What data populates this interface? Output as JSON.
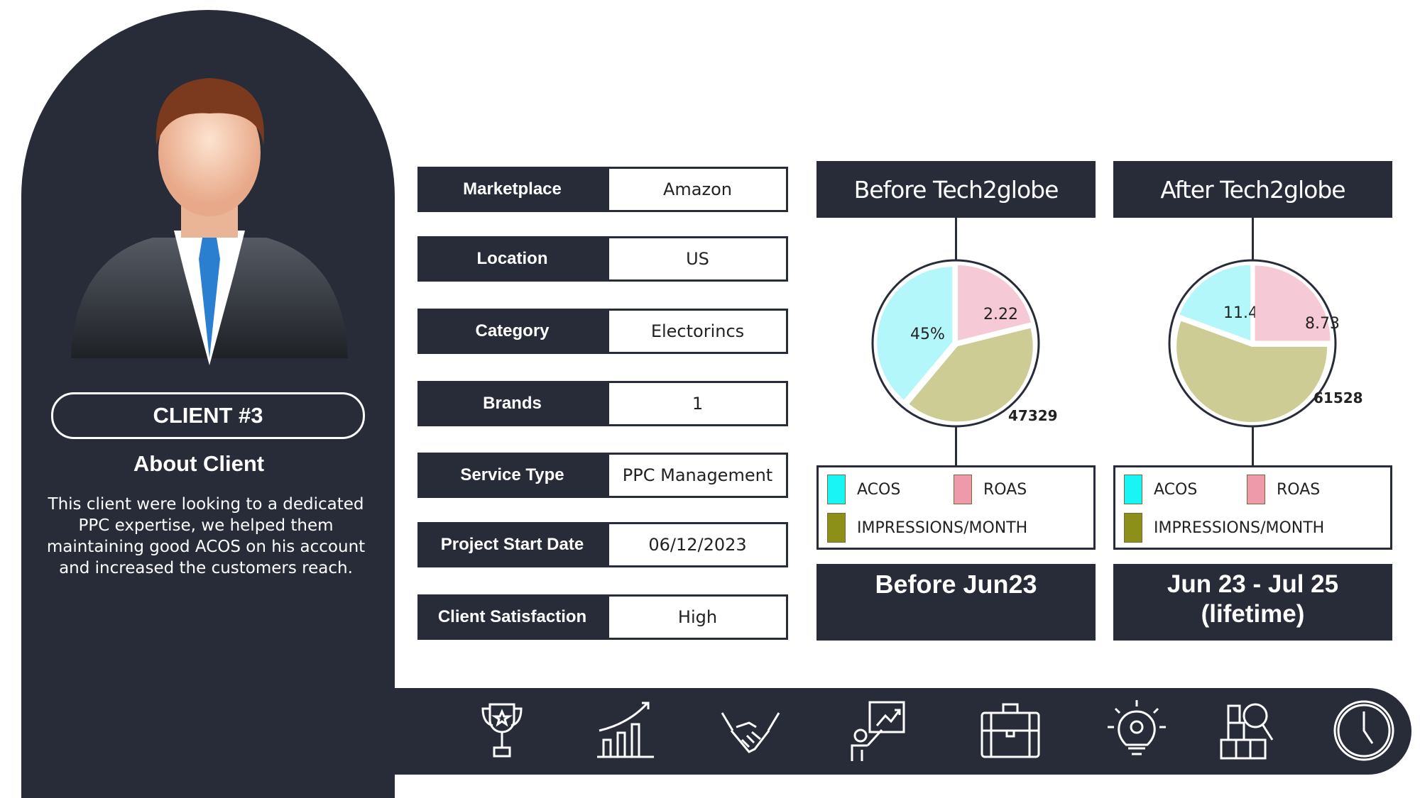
{
  "client": {
    "badge": "CLIENT #3",
    "about_title": "About Client",
    "about_text": "This client were looking to a dedicated PPC expertise, we helped them maintaining good ACOS on his account and increased the customers reach."
  },
  "details": [
    {
      "label": "Marketplace",
      "value": "Amazon"
    },
    {
      "label": "Location",
      "value": "US"
    },
    {
      "label": "Category",
      "value": "Electorincs"
    },
    {
      "label": "Brands",
      "value": "1"
    },
    {
      "label": "Service Type",
      "value": "PPC Management"
    },
    {
      "label": "Project Start Date",
      "value": "06/12/2023"
    },
    {
      "label": "Client Satisfaction",
      "value": "High"
    }
  ],
  "chart_data": [
    {
      "type": "pie",
      "title": "Before Tech2globe",
      "period": "Before Jun23",
      "categories": [
        "ACOS",
        "ROAS",
        "IMPRESSIONS/MONTH"
      ],
      "labels": [
        "45%",
        "2.22",
        "47329"
      ],
      "values": [
        45,
        2.22,
        47329
      ],
      "colors": [
        "#b3f7fa",
        "#f5c9d5",
        "#cccc94"
      ]
    },
    {
      "type": "pie",
      "title": "After Tech2globe",
      "period": "Jun 23 - Jul 25 (lifetime)",
      "categories": [
        "ACOS",
        "ROAS",
        "IMPRESSIONS/MONTH"
      ],
      "labels": [
        "11.45%",
        "8.73",
        "61528"
      ],
      "values": [
        11.45,
        8.73,
        61528
      ],
      "colors": [
        "#b3f7fa",
        "#f5c9d5",
        "#cccc94"
      ]
    }
  ],
  "legend_colors": [
    "#19f5f5",
    "#ef9aaa",
    "#8c9018"
  ],
  "icons": [
    "trophy-icon",
    "growth-chart-icon",
    "handshake-icon",
    "presentation-icon",
    "briefcase-icon",
    "lightbulb-gear-icon",
    "inventory-search-icon",
    "clock-icon"
  ],
  "colors": {
    "dark": "#272c38"
  }
}
